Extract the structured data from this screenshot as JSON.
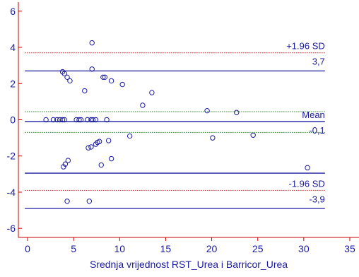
{
  "chart_data": {
    "type": "scatter",
    "title": "",
    "xlabel": "Srednja vrijednost RST_Urea i Barricor_Urea",
    "ylabel": "",
    "xlim": [
      -1,
      36
    ],
    "ylim": [
      -6.5,
      6.5
    ],
    "x_ticks": [
      0,
      5,
      10,
      15,
      20,
      25,
      30,
      35
    ],
    "y_ticks": [
      -6,
      -4,
      -2,
      0,
      2,
      4,
      6
    ],
    "grid": false,
    "points": {
      "x": [
        2.0,
        2.8,
        3.2,
        3.5,
        3.8,
        4.0,
        5.3,
        5.6,
        5.8,
        6.5,
        6.9,
        7.1,
        7.4,
        8.6,
        19.5,
        22.7,
        12.5,
        13.5,
        10.3,
        9.1,
        8.4,
        6.2,
        4.6,
        4.3,
        4.0,
        3.8,
        7.0,
        7.0,
        8.2,
        11.1,
        20.1,
        24.5,
        30.4,
        8.8,
        7.8,
        7.6,
        7.4,
        6.9,
        6.6,
        4.4,
        4.1,
        3.9,
        9.1,
        8.0,
        4.3,
        6.7
      ],
      "y": [
        0.0,
        0.0,
        0.0,
        0.0,
        0.0,
        0.0,
        0.0,
        0.0,
        0.0,
        0.0,
        0.0,
        0.0,
        0.0,
        0.0,
        0.5,
        0.4,
        0.8,
        1.5,
        1.95,
        2.15,
        2.35,
        1.6,
        2.15,
        2.35,
        2.55,
        2.65,
        2.8,
        4.25,
        2.35,
        -0.9,
        -1.0,
        -0.85,
        -2.65,
        -1.15,
        -1.2,
        -1.25,
        -1.35,
        -1.5,
        -1.55,
        -2.25,
        -2.45,
        -2.6,
        -2.15,
        -2.5,
        -4.5,
        -4.5
      ]
    },
    "reference_lines": [
      {
        "name": "+1.96 SD",
        "value": 3.7,
        "value_label": "3,7",
        "style": "dotted",
        "color": "#cc2222"
      },
      {
        "name": "",
        "value": 2.7,
        "value_label": "",
        "style": "solid",
        "color": "#1a1aa0"
      },
      {
        "name": "",
        "value": 0.45,
        "value_label": "",
        "style": "dotted",
        "color": "#228b22"
      },
      {
        "name": "Mean",
        "value": -0.1,
        "value_label": "-0,1",
        "style": "solid",
        "color": "#1a1aa0"
      },
      {
        "name": "",
        "value": -0.7,
        "value_label": "",
        "style": "dotted",
        "color": "#228b22"
      },
      {
        "name": "",
        "value": -2.95,
        "value_label": "",
        "style": "solid",
        "color": "#1a1aa0"
      },
      {
        "name": "-1.96 SD",
        "value": -3.9,
        "value_label": "-3,9",
        "style": "dotted",
        "color": "#cc2222"
      },
      {
        "name": "",
        "value": -4.9,
        "value_label": "",
        "style": "solid",
        "color": "#1a1aa0"
      }
    ],
    "colors": {
      "axis": "#cc0000",
      "tick_labels": "#1a1aa0",
      "points": "#1a1aa0"
    }
  }
}
